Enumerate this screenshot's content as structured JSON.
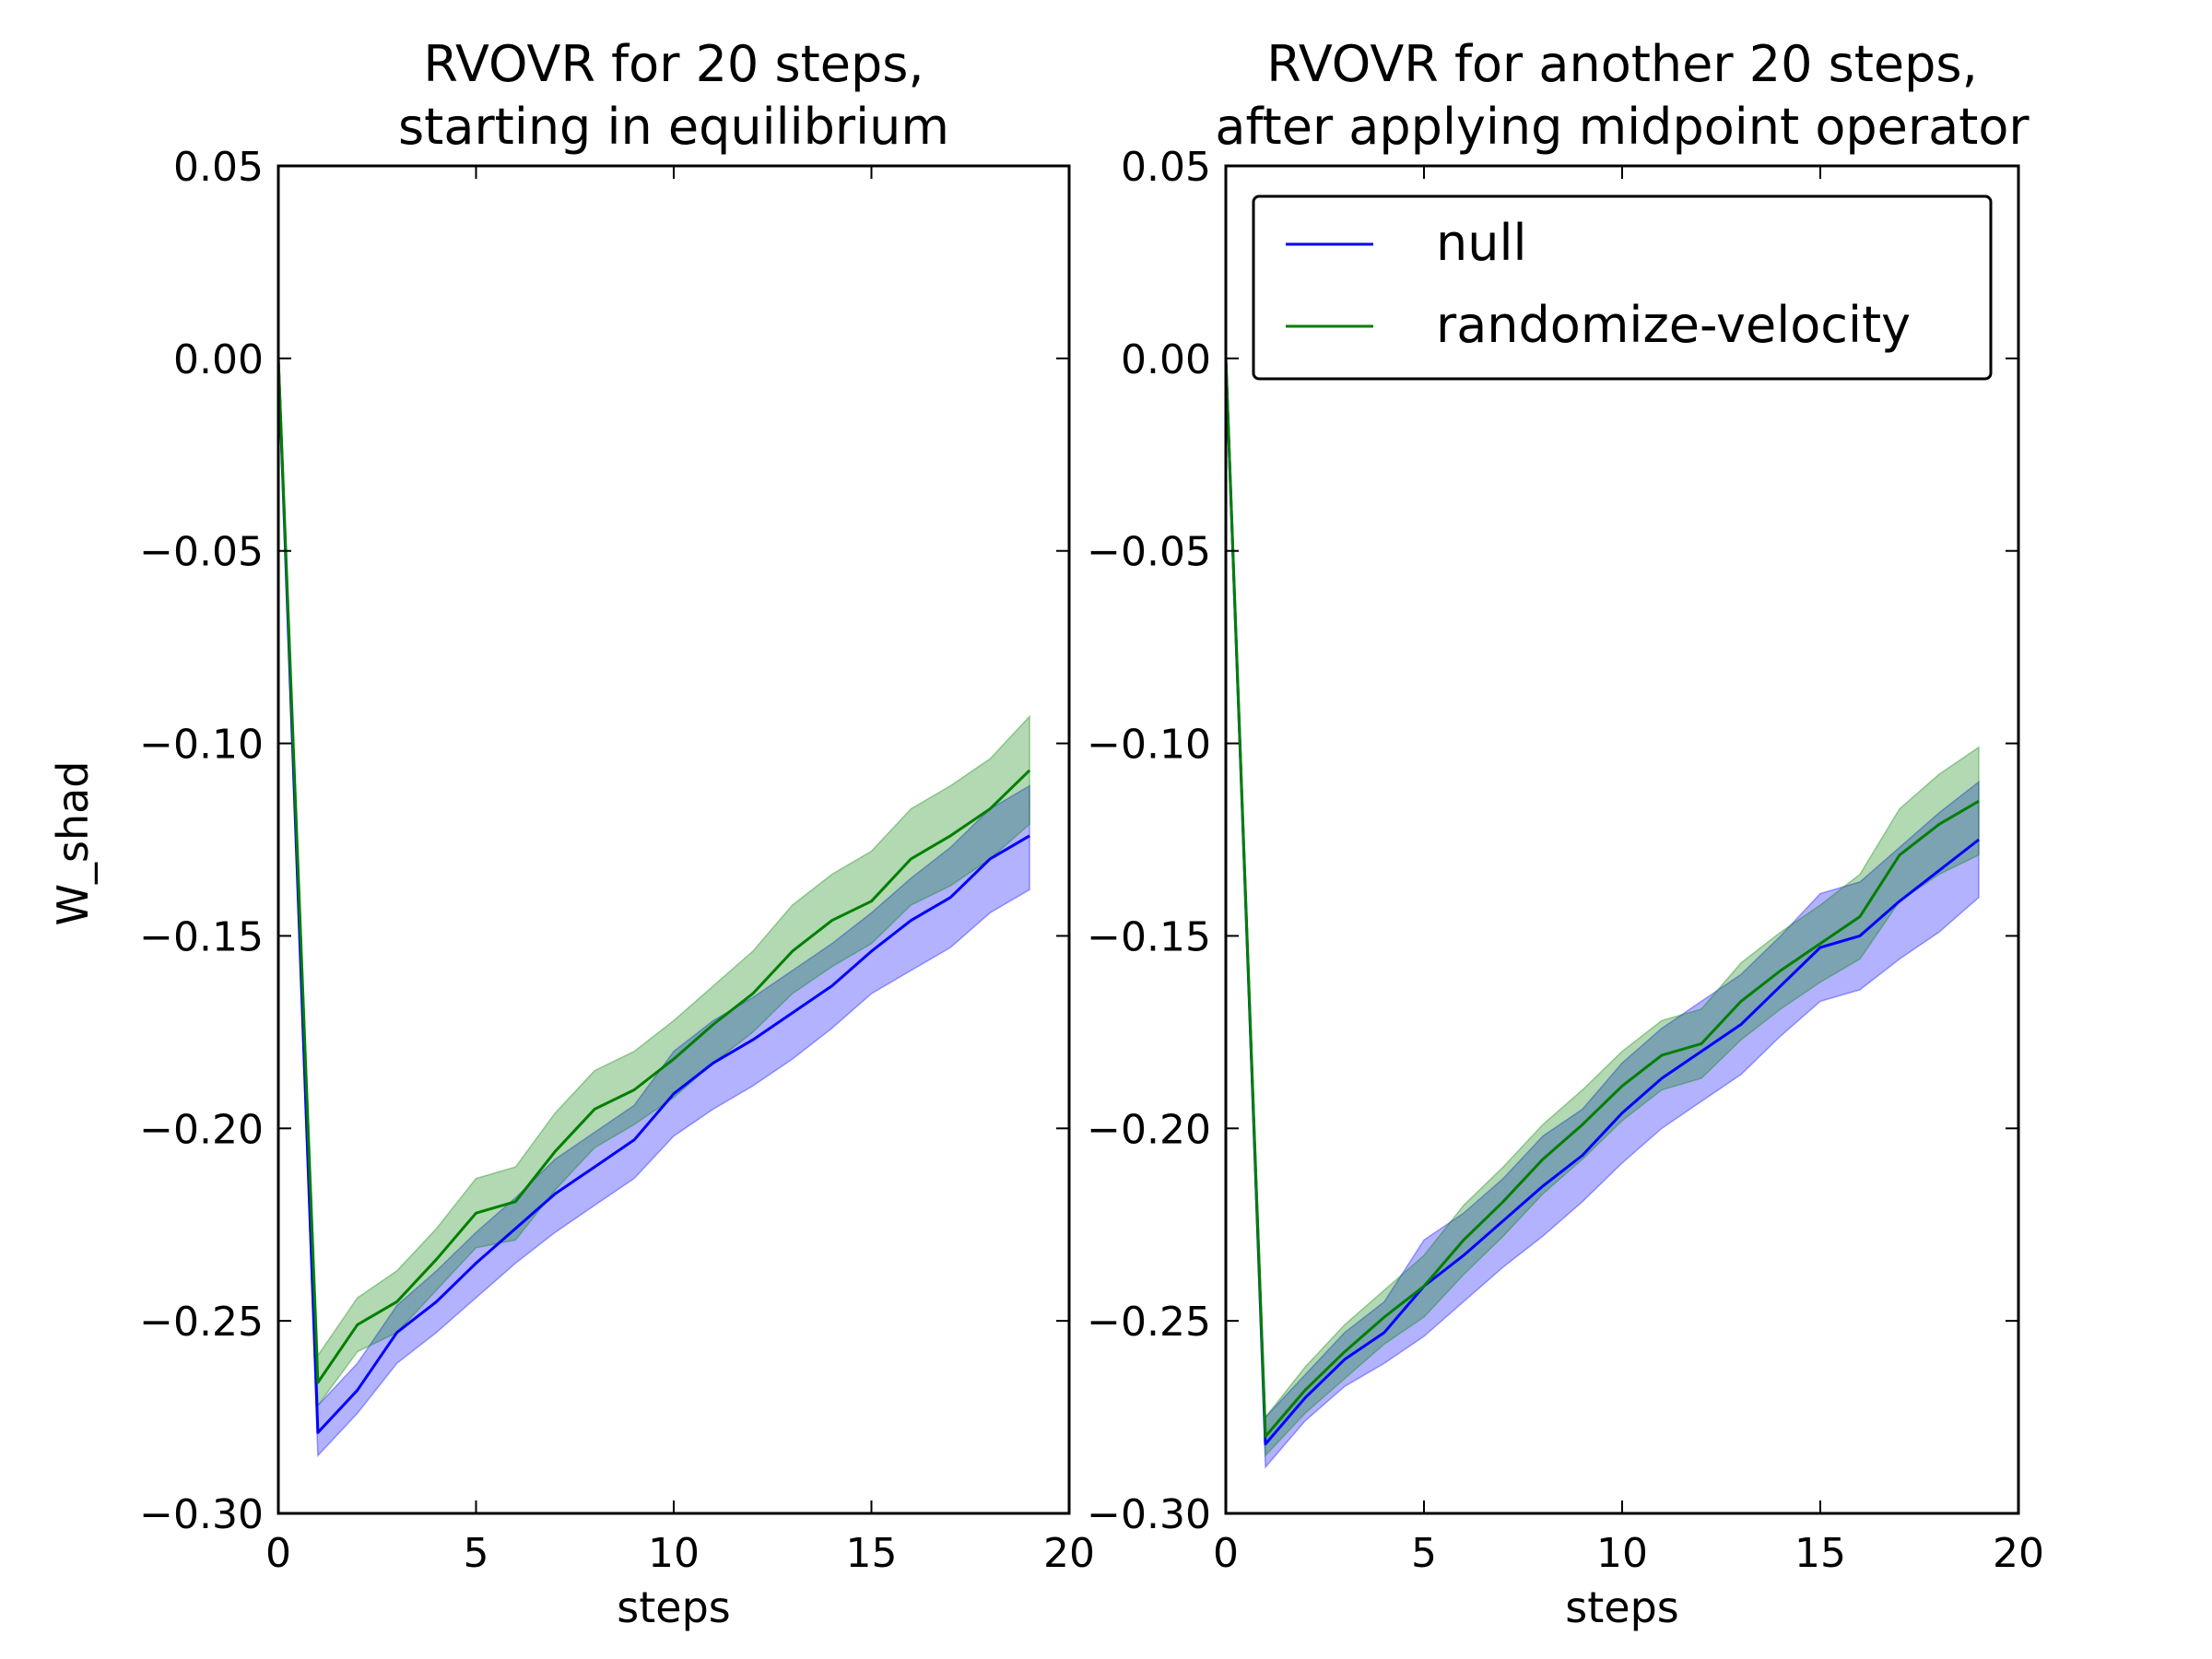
{
  "chart_data": [
    {
      "type": "line",
      "title_lines": [
        "RVOVR for 20 steps,",
        "starting in equilibrium"
      ],
      "xlabel": "steps",
      "ylabel": "W_shad",
      "xlim": [
        0,
        20
      ],
      "ylim": [
        -0.3,
        0.05
      ],
      "xticks": [
        "0",
        "5",
        "10",
        "15",
        "20"
      ],
      "yticks": [
        "0.05",
        "0.00",
        "−0.05",
        "−0.10",
        "−0.15",
        "−0.20",
        "−0.25",
        "−0.30"
      ],
      "grid": false,
      "legend": null,
      "x": [
        0,
        1,
        2,
        3,
        4,
        5,
        6,
        7,
        8,
        9,
        10,
        11,
        12,
        13,
        14,
        15,
        16,
        17,
        18,
        19
      ],
      "series": [
        {
          "name": "null",
          "color": "#0000ff",
          "fill_color": "#0000ff",
          "values": [
            0.0,
            -0.279,
            -0.268,
            -0.253,
            -0.245,
            -0.235,
            -0.226,
            -0.217,
            -0.21,
            -0.203,
            -0.191,
            -0.183,
            -0.177,
            -0.17,
            -0.163,
            -0.154,
            -0.146,
            -0.14,
            -0.13,
            -0.124
          ],
          "lower": [
            0.0,
            -0.285,
            -0.274,
            -0.261,
            -0.253,
            -0.244,
            -0.235,
            -0.227,
            -0.22,
            -0.213,
            -0.202,
            -0.195,
            -0.189,
            -0.182,
            -0.174,
            -0.165,
            -0.159,
            -0.153,
            -0.144,
            -0.138
          ],
          "upper": [
            0.0,
            -0.272,
            -0.261,
            -0.246,
            -0.237,
            -0.227,
            -0.218,
            -0.208,
            -0.201,
            -0.194,
            -0.18,
            -0.172,
            -0.166,
            -0.159,
            -0.152,
            -0.144,
            -0.135,
            -0.127,
            -0.117,
            -0.111
          ]
        },
        {
          "name": "randomize-velocity",
          "color": "#007f00",
          "fill_color": "#008000",
          "values": [
            0.0,
            -0.266,
            -0.251,
            -0.245,
            -0.234,
            -0.222,
            -0.219,
            -0.206,
            -0.195,
            -0.19,
            -0.182,
            -0.173,
            -0.165,
            -0.154,
            -0.146,
            -0.141,
            -0.13,
            -0.124,
            -0.117,
            -0.107
          ],
          "lower": [
            0.0,
            -0.272,
            -0.258,
            -0.253,
            -0.242,
            -0.231,
            -0.229,
            -0.216,
            -0.205,
            -0.199,
            -0.192,
            -0.183,
            -0.175,
            -0.165,
            -0.158,
            -0.152,
            -0.142,
            -0.137,
            -0.13,
            -0.121
          ],
          "upper": [
            0.0,
            -0.259,
            -0.244,
            -0.237,
            -0.226,
            -0.213,
            -0.21,
            -0.196,
            -0.185,
            -0.18,
            -0.172,
            -0.163,
            -0.154,
            -0.142,
            -0.134,
            -0.128,
            -0.117,
            -0.111,
            -0.104,
            -0.093
          ]
        }
      ]
    },
    {
      "type": "line",
      "title_lines": [
        "RVOVR for another 20 steps,",
        "after applying midpoint operator"
      ],
      "xlabel": "steps",
      "ylabel": "",
      "xlim": [
        0,
        20
      ],
      "ylim": [
        -0.3,
        0.05
      ],
      "xticks": [
        "0",
        "5",
        "10",
        "15",
        "20"
      ],
      "yticks": [
        "0.05",
        "0.00",
        "−0.05",
        "−0.10",
        "−0.15",
        "−0.20",
        "−0.25",
        "−0.30"
      ],
      "grid": false,
      "legend": "top-right",
      "x": [
        0,
        1,
        2,
        3,
        4,
        5,
        6,
        7,
        8,
        9,
        10,
        11,
        12,
        13,
        14,
        15,
        16,
        17,
        18,
        19
      ],
      "series": [
        {
          "name": "null",
          "color": "#0000ff",
          "fill_color": "#0000ff",
          "values": [
            0.0,
            -0.282,
            -0.27,
            -0.26,
            -0.253,
            -0.241,
            -0.233,
            -0.224,
            -0.215,
            -0.207,
            -0.196,
            -0.187,
            -0.18,
            -0.173,
            -0.163,
            -0.153,
            -0.15,
            -0.141,
            -0.133,
            -0.125
          ],
          "lower": [
            0.0,
            -0.288,
            -0.276,
            -0.267,
            -0.261,
            -0.254,
            -0.245,
            -0.236,
            -0.228,
            -0.219,
            -0.209,
            -0.2,
            -0.193,
            -0.186,
            -0.176,
            -0.167,
            -0.164,
            -0.156,
            -0.149,
            -0.14
          ],
          "upper": [
            0.0,
            -0.275,
            -0.264,
            -0.253,
            -0.245,
            -0.229,
            -0.222,
            -0.213,
            -0.202,
            -0.195,
            -0.183,
            -0.174,
            -0.167,
            -0.16,
            -0.15,
            -0.139,
            -0.136,
            -0.127,
            -0.118,
            -0.11
          ]
        },
        {
          "name": "randomize-velocity",
          "color": "#007f00",
          "fill_color": "#008000",
          "values": [
            0.0,
            -0.28,
            -0.268,
            -0.258,
            -0.249,
            -0.241,
            -0.229,
            -0.219,
            -0.208,
            -0.199,
            -0.189,
            -0.181,
            -0.178,
            -0.167,
            -0.159,
            -0.152,
            -0.145,
            -0.129,
            -0.121,
            -0.115
          ],
          "lower": [
            0.0,
            -0.285,
            -0.274,
            -0.265,
            -0.256,
            -0.249,
            -0.238,
            -0.228,
            -0.217,
            -0.208,
            -0.198,
            -0.19,
            -0.187,
            -0.177,
            -0.169,
            -0.162,
            -0.156,
            -0.141,
            -0.134,
            -0.129
          ],
          "upper": [
            0.0,
            -0.275,
            -0.262,
            -0.251,
            -0.242,
            -0.233,
            -0.22,
            -0.21,
            -0.199,
            -0.19,
            -0.18,
            -0.172,
            -0.169,
            -0.157,
            -0.149,
            -0.142,
            -0.134,
            -0.117,
            -0.108,
            -0.101
          ]
        }
      ]
    }
  ]
}
